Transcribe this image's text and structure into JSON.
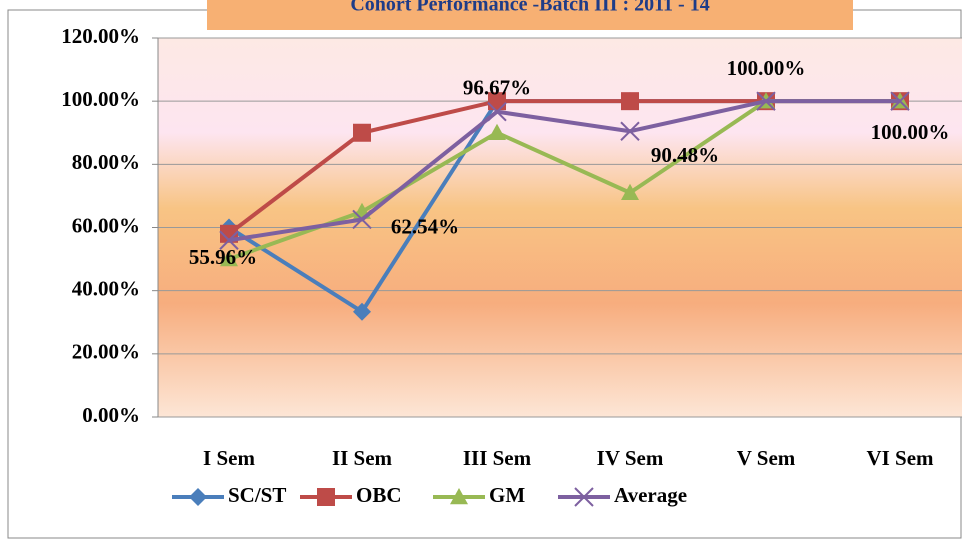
{
  "chart_data": {
    "type": "line",
    "title": "Cohort Performance -Batch III : 2011 - 14",
    "categories": [
      "I Sem",
      "II Sem",
      "III Sem",
      "IV Sem",
      "V Sem",
      "VI Sem"
    ],
    "series": [
      {
        "name": "SC/ST",
        "color": "#4a7ebb",
        "marker": "diamond",
        "values": [
          60,
          33.33,
          100,
          100,
          100,
          100
        ]
      },
      {
        "name": "OBC",
        "color": "#be4b48",
        "marker": "square",
        "values": [
          58,
          90,
          100,
          100,
          100,
          100
        ]
      },
      {
        "name": "GM",
        "color": "#98b954",
        "marker": "triangle",
        "values": [
          50,
          65,
          90,
          71,
          100,
          100
        ]
      },
      {
        "name": "Average",
        "color": "#7d60a0",
        "marker": "x",
        "values": [
          55.96,
          62.54,
          96.67,
          90.48,
          100,
          100
        ],
        "value_labels": [
          "55.96%",
          "62.54%",
          "96.67%",
          "90.48%",
          "100.00%",
          "100.00%"
        ]
      }
    ],
    "ylim": [
      0,
      120
    ],
    "yticks": [
      {
        "value": 0,
        "label": "0.00%"
      },
      {
        "value": 20,
        "label": "20.00%"
      },
      {
        "value": 40,
        "label": "40.00%"
      },
      {
        "value": 60,
        "label": "60.00%"
      },
      {
        "value": 80,
        "label": "80.00%"
      },
      {
        "value": 100,
        "label": "100.00%"
      },
      {
        "value": 120,
        "label": "120.00%"
      }
    ],
    "grid": true,
    "legend": "bottom"
  }
}
